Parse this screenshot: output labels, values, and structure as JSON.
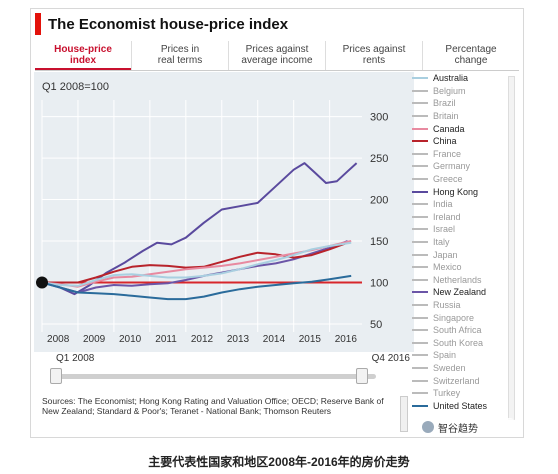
{
  "title": "The Economist house-price index",
  "tabs": [
    {
      "label": "House-price\nindex",
      "active": true
    },
    {
      "label": "Prices in\nreal terms",
      "active": false
    },
    {
      "label": "Prices against\naverage income",
      "active": false
    },
    {
      "label": "Prices against\nrents",
      "active": false
    },
    {
      "label": "Percentage\nchange",
      "active": false
    }
  ],
  "chart_data": {
    "type": "line",
    "title": "Q1 2008=100",
    "x_ticks": [
      "2008",
      "2009",
      "2010",
      "2011",
      "2012",
      "2013",
      "2014",
      "2015",
      "2016"
    ],
    "xlim": [
      2008.0,
      2016.9
    ],
    "y_ticks": [
      50,
      100,
      150,
      200,
      250,
      300
    ],
    "ylim": [
      50,
      320
    ],
    "grid": true,
    "baseline": 100,
    "colors": {
      "background": "#e9eef2",
      "baseline": "#d7262b",
      "grid": "#ffffff"
    },
    "series": [
      {
        "name": "Hong Kong",
        "color": "#5a4a9e",
        "points": [
          [
            2008.0,
            100
          ],
          [
            2008.4,
            96
          ],
          [
            2008.9,
            86
          ],
          [
            2009.3,
            96
          ],
          [
            2009.8,
            112
          ],
          [
            2010.3,
            124
          ],
          [
            2010.8,
            138
          ],
          [
            2011.2,
            148
          ],
          [
            2011.6,
            146
          ],
          [
            2012.0,
            154
          ],
          [
            2012.5,
            172
          ],
          [
            2013.0,
            188
          ],
          [
            2013.5,
            192
          ],
          [
            2014.0,
            196
          ],
          [
            2014.5,
            216
          ],
          [
            2015.0,
            236
          ],
          [
            2015.3,
            244
          ],
          [
            2015.6,
            232
          ],
          [
            2015.9,
            220
          ],
          [
            2016.2,
            222
          ],
          [
            2016.5,
            234
          ],
          [
            2016.75,
            244
          ]
        ]
      },
      {
        "name": "New Zealand",
        "color": "#6b55a7",
        "points": [
          [
            2008.0,
            100
          ],
          [
            2008.5,
            94
          ],
          [
            2009.0,
            88
          ],
          [
            2009.5,
            94
          ],
          [
            2010.0,
            97
          ],
          [
            2010.5,
            96
          ],
          [
            2011.0,
            98
          ],
          [
            2011.5,
            99
          ],
          [
            2012.0,
            103
          ],
          [
            2012.5,
            108
          ],
          [
            2013.0,
            112
          ],
          [
            2013.5,
            116
          ],
          [
            2014.0,
            120
          ],
          [
            2014.5,
            123
          ],
          [
            2015.0,
            128
          ],
          [
            2015.5,
            135
          ],
          [
            2016.0,
            142
          ],
          [
            2016.5,
            150
          ]
        ]
      },
      {
        "name": "China",
        "color": "#b8232b",
        "points": [
          [
            2008.0,
            100
          ],
          [
            2008.5,
            100
          ],
          [
            2009.0,
            100
          ],
          [
            2009.5,
            106
          ],
          [
            2010.0,
            113
          ],
          [
            2010.5,
            119
          ],
          [
            2011.0,
            121
          ],
          [
            2011.5,
            120
          ],
          [
            2012.0,
            118
          ],
          [
            2012.5,
            119
          ],
          [
            2013.0,
            125
          ],
          [
            2013.5,
            131
          ],
          [
            2014.0,
            136
          ],
          [
            2014.5,
            134
          ],
          [
            2015.0,
            130
          ],
          [
            2015.5,
            133
          ],
          [
            2016.0,
            140
          ],
          [
            2016.5,
            148
          ]
        ]
      },
      {
        "name": "Canada",
        "color": "#e88aa0",
        "points": [
          [
            2008.0,
            100
          ],
          [
            2008.5,
            98
          ],
          [
            2009.0,
            95
          ],
          [
            2009.5,
            101
          ],
          [
            2010.0,
            106
          ],
          [
            2010.5,
            107
          ],
          [
            2011.0,
            110
          ],
          [
            2011.5,
            113
          ],
          [
            2012.0,
            116
          ],
          [
            2012.5,
            118
          ],
          [
            2013.0,
            120
          ],
          [
            2013.5,
            123
          ],
          [
            2014.0,
            127
          ],
          [
            2014.5,
            131
          ],
          [
            2015.0,
            135
          ],
          [
            2015.5,
            139
          ],
          [
            2016.0,
            144
          ],
          [
            2016.6,
            150
          ]
        ]
      },
      {
        "name": "Australia",
        "color": "#a9cfe0",
        "points": [
          [
            2008.0,
            100
          ],
          [
            2008.5,
            97
          ],
          [
            2009.0,
            96
          ],
          [
            2009.5,
            103
          ],
          [
            2010.0,
            109
          ],
          [
            2010.5,
            110
          ],
          [
            2011.0,
            108
          ],
          [
            2011.5,
            106
          ],
          [
            2012.0,
            106
          ],
          [
            2012.5,
            108
          ],
          [
            2013.0,
            111
          ],
          [
            2013.5,
            116
          ],
          [
            2014.0,
            122
          ],
          [
            2014.5,
            127
          ],
          [
            2015.0,
            133
          ],
          [
            2015.5,
            140
          ],
          [
            2016.0,
            144
          ],
          [
            2016.6,
            148
          ]
        ]
      },
      {
        "name": "United States",
        "color": "#2a6b9b",
        "points": [
          [
            2008.0,
            100
          ],
          [
            2008.5,
            94
          ],
          [
            2009.0,
            88
          ],
          [
            2009.5,
            87
          ],
          [
            2010.0,
            86
          ],
          [
            2010.5,
            84
          ],
          [
            2011.0,
            82
          ],
          [
            2011.5,
            80
          ],
          [
            2012.0,
            80
          ],
          [
            2012.5,
            83
          ],
          [
            2013.0,
            88
          ],
          [
            2013.5,
            92
          ],
          [
            2014.0,
            95
          ],
          [
            2014.5,
            97
          ],
          [
            2015.0,
            99
          ],
          [
            2015.5,
            101
          ],
          [
            2016.0,
            104
          ],
          [
            2016.6,
            108
          ]
        ]
      }
    ]
  },
  "slider": {
    "start_label": "Q1 2008",
    "end_label": "Q4 2016"
  },
  "sources_text": "Sources: The Economist; Hong Kong Rating and Valuation Office; OECD; Reserve Bank of New Zealand; Standard & Poor's; Teranet - National Bank; Thomson Reuters",
  "legend": [
    {
      "name": "Australia",
      "color": "#a9cfe0",
      "on": true
    },
    {
      "name": "Belgium",
      "color": "#bbbbbb",
      "on": false
    },
    {
      "name": "Brazil",
      "color": "#bbbbbb",
      "on": false
    },
    {
      "name": "Britain",
      "color": "#bbbbbb",
      "on": false
    },
    {
      "name": "Canada",
      "color": "#e88aa0",
      "on": true
    },
    {
      "name": "China",
      "color": "#b8232b",
      "on": true
    },
    {
      "name": "France",
      "color": "#bbbbbb",
      "on": false
    },
    {
      "name": "Germany",
      "color": "#bbbbbb",
      "on": false
    },
    {
      "name": "Greece",
      "color": "#bbbbbb",
      "on": false
    },
    {
      "name": "Hong Kong",
      "color": "#5a4a9e",
      "on": true
    },
    {
      "name": "India",
      "color": "#bbbbbb",
      "on": false
    },
    {
      "name": "Ireland",
      "color": "#bbbbbb",
      "on": false
    },
    {
      "name": "Israel",
      "color": "#bbbbbb",
      "on": false
    },
    {
      "name": "Italy",
      "color": "#bbbbbb",
      "on": false
    },
    {
      "name": "Japan",
      "color": "#bbbbbb",
      "on": false
    },
    {
      "name": "Mexico",
      "color": "#bbbbbb",
      "on": false
    },
    {
      "name": "Netherlands",
      "color": "#bbbbbb",
      "on": false
    },
    {
      "name": "New Zealand",
      "color": "#6b55a7",
      "on": true
    },
    {
      "name": "Russia",
      "color": "#bbbbbb",
      "on": false
    },
    {
      "name": "Singapore",
      "color": "#bbbbbb",
      "on": false
    },
    {
      "name": "South Africa",
      "color": "#bbbbbb",
      "on": false
    },
    {
      "name": "South Korea",
      "color": "#bbbbbb",
      "on": false
    },
    {
      "name": "Spain",
      "color": "#bbbbbb",
      "on": false
    },
    {
      "name": "Sweden",
      "color": "#bbbbbb",
      "on": false
    },
    {
      "name": "Switzerland",
      "color": "#bbbbbb",
      "on": false
    },
    {
      "name": "Turkey",
      "color": "#bbbbbb",
      "on": false
    },
    {
      "name": "United States",
      "color": "#2a6b9b",
      "on": true
    }
  ],
  "watermark": "智谷趋势",
  "caption": "主要代表性国家和地区2008年-2016年的房价走势"
}
